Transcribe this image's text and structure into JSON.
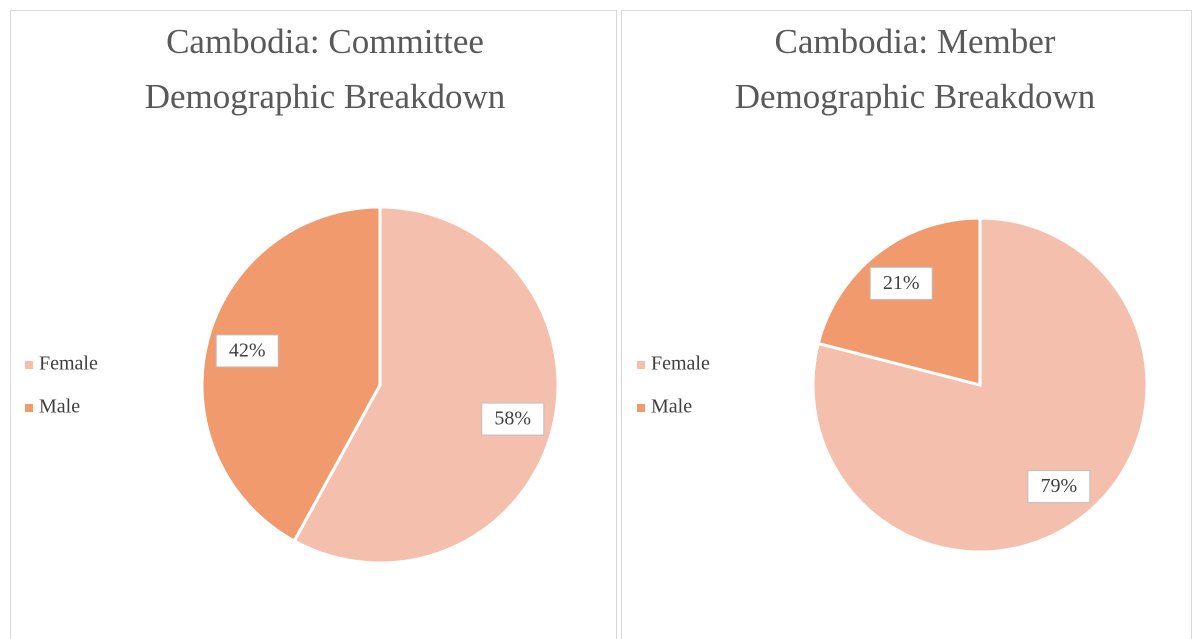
{
  "chart_data": [
    {
      "type": "pie",
      "title": "Cambodia: Committee Demographic Breakdown",
      "categories": [
        "Female",
        "Male"
      ],
      "values": [
        58,
        42
      ],
      "value_labels": [
        "58%",
        "42%"
      ],
      "colors": [
        "#f4bfac",
        "#f09a6e"
      ],
      "legend": "left"
    },
    {
      "type": "pie",
      "title": "Cambodia: Member Demographic Breakdown",
      "categories": [
        "Female",
        "Male"
      ],
      "values": [
        79,
        21
      ],
      "value_labels": [
        "79%",
        "21%"
      ],
      "colors": [
        "#f4bfac",
        "#f09a6e"
      ],
      "legend": "left"
    }
  ]
}
